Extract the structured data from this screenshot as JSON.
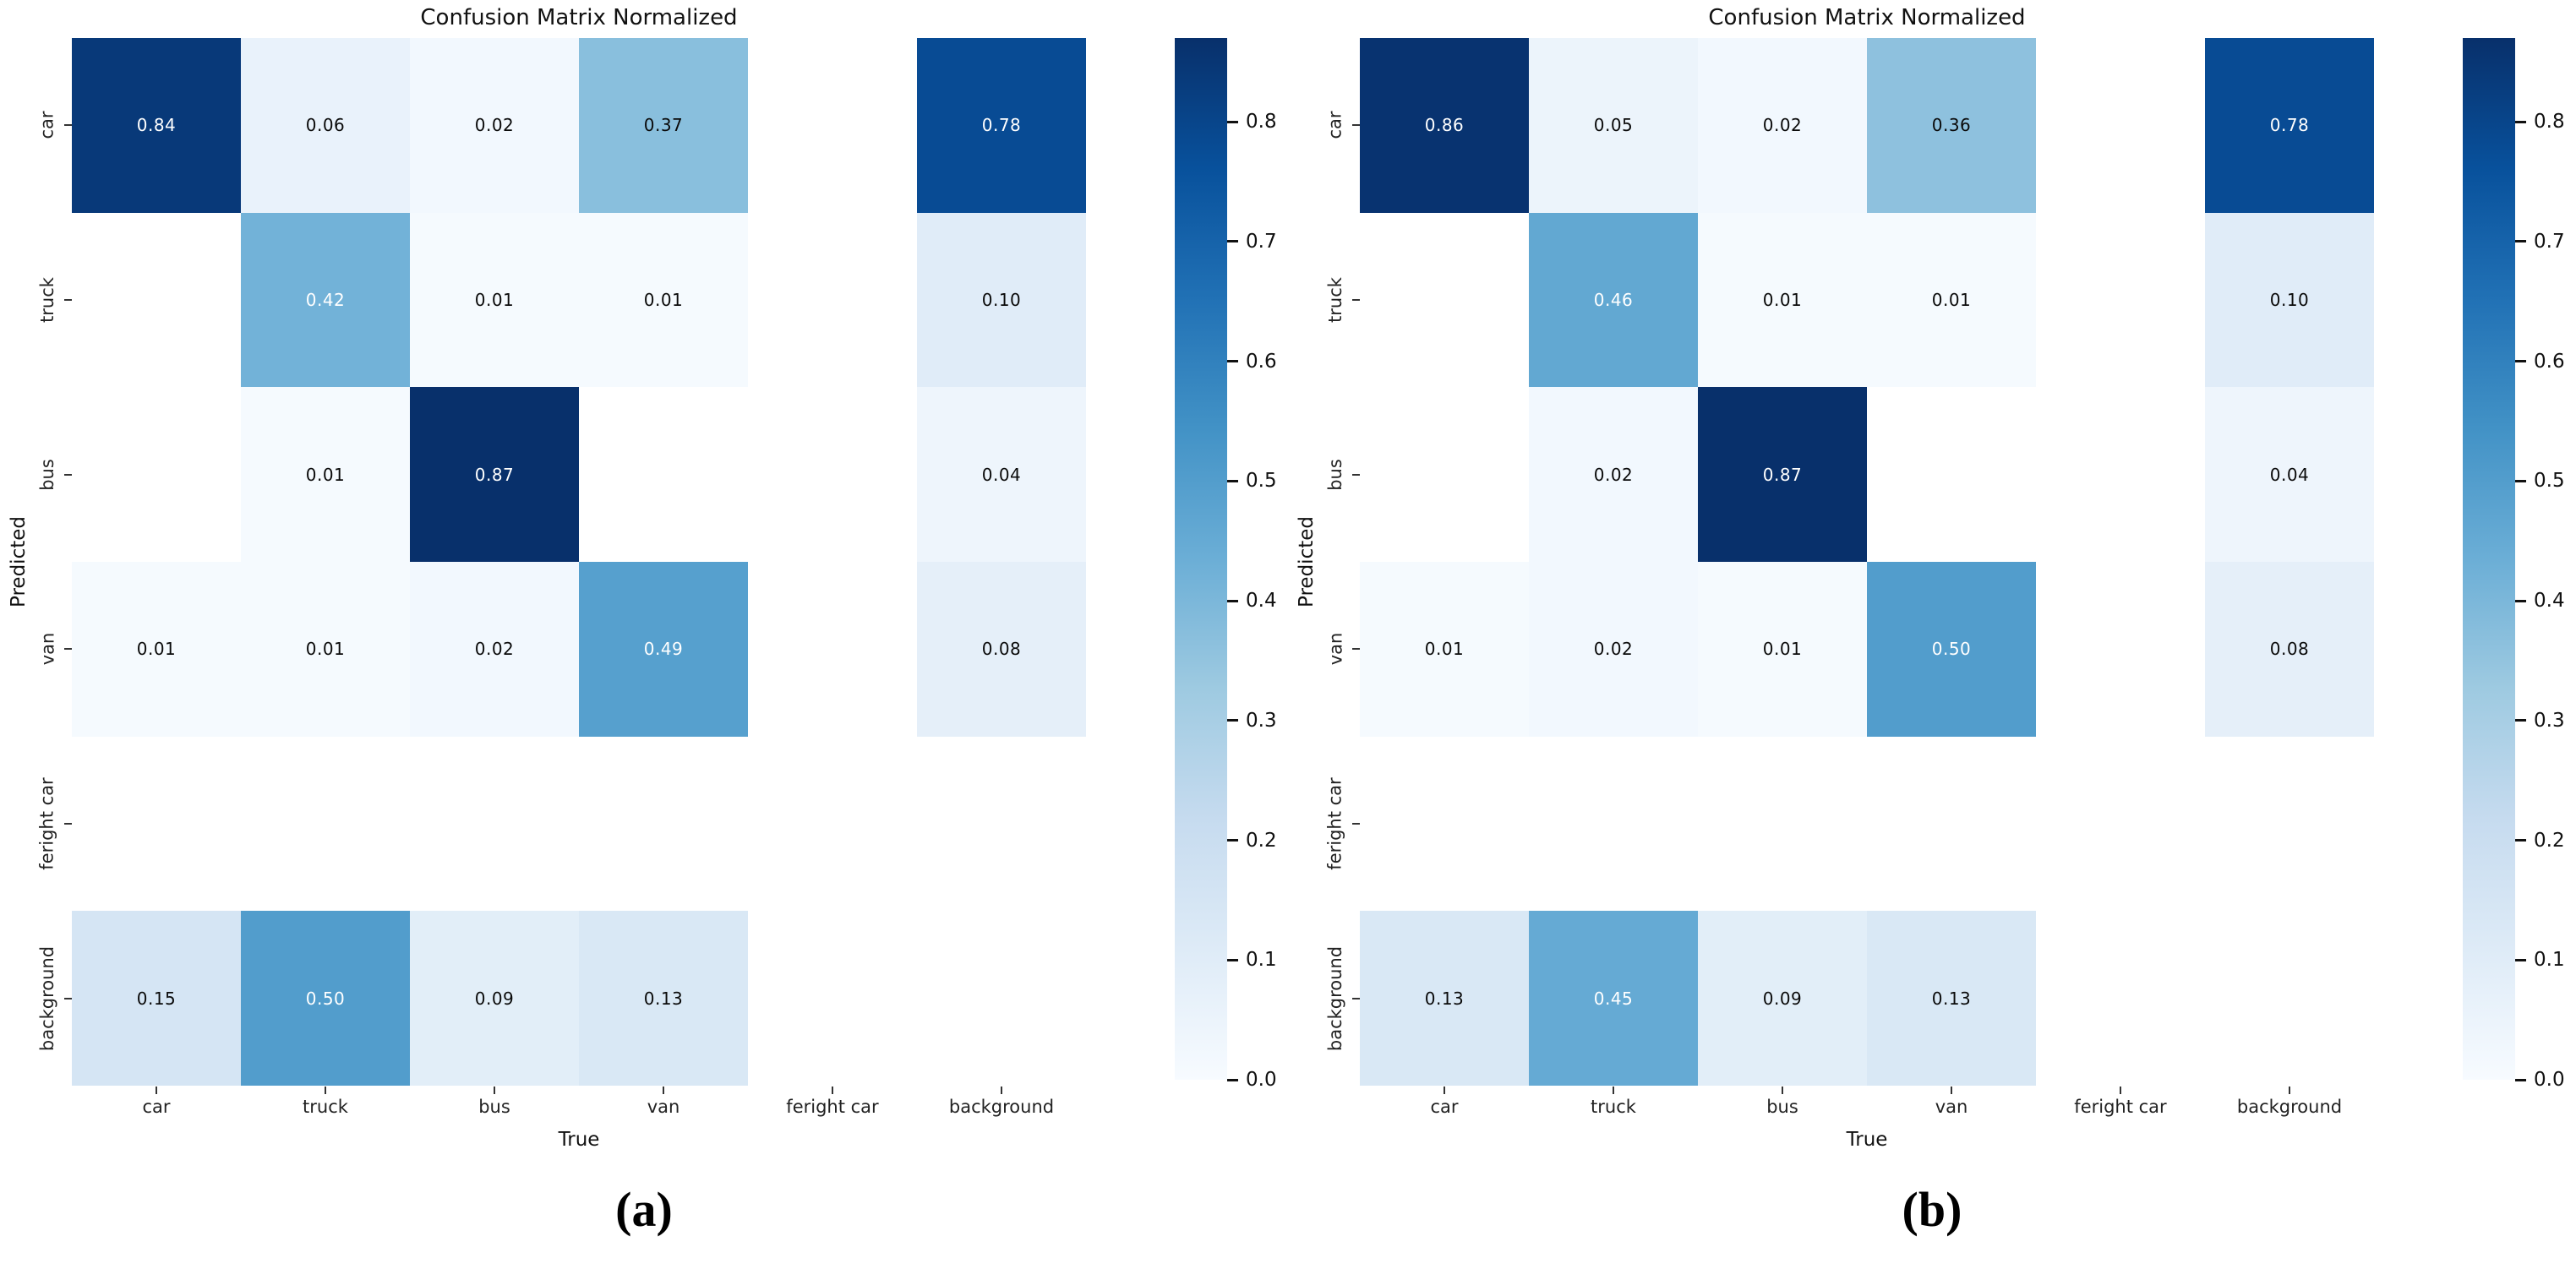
{
  "captions": {
    "a": "(a)",
    "b": "(b)"
  },
  "palette": {
    "background": "#ffffff",
    "empty_cell": "#ffffff",
    "annotation_dark_text": "#0a0a0a",
    "annotation_light_text": "#ffffff",
    "blues_stops": [
      "#f7fbff",
      "#deebf7",
      "#c6dbef",
      "#9ecae1",
      "#6baed6",
      "#4292c6",
      "#2171b5",
      "#08519c",
      "#08306b"
    ]
  },
  "chart_data": [
    {
      "type": "heatmap",
      "panel": "a",
      "title": "Confusion Matrix Normalized",
      "xlabel": "True",
      "ylabel": "Predicted",
      "x_categories": [
        "car",
        "truck",
        "bus",
        "van",
        "feright car",
        "background"
      ],
      "y_categories": [
        "car",
        "truck",
        "bus",
        "van",
        "feright car",
        "background"
      ],
      "values": [
        [
          0.84,
          0.06,
          0.02,
          0.37,
          null,
          0.78
        ],
        [
          null,
          0.42,
          0.01,
          0.01,
          null,
          0.1
        ],
        [
          null,
          0.01,
          0.87,
          null,
          null,
          0.04
        ],
        [
          0.01,
          0.01,
          0.02,
          0.49,
          null,
          0.08
        ],
        [
          null,
          null,
          null,
          null,
          null,
          null
        ],
        [
          0.15,
          0.5,
          0.09,
          0.13,
          null,
          null
        ]
      ],
      "vmin": 0.0,
      "vmax": 0.87,
      "colormap": "Blues",
      "colorbar_ticks": [
        0.0,
        0.1,
        0.2,
        0.3,
        0.4,
        0.5,
        0.6,
        0.7,
        0.8
      ],
      "annotation_decimals": 2,
      "legend_position": "right-colorbar",
      "grid": false
    },
    {
      "type": "heatmap",
      "panel": "b",
      "title": "Confusion Matrix Normalized",
      "xlabel": "True",
      "ylabel": "Predicted",
      "x_categories": [
        "car",
        "truck",
        "bus",
        "van",
        "feright car",
        "background"
      ],
      "y_categories": [
        "car",
        "truck",
        "bus",
        "van",
        "feright car",
        "background"
      ],
      "values": [
        [
          0.86,
          0.05,
          0.02,
          0.36,
          null,
          0.78
        ],
        [
          null,
          0.46,
          0.01,
          0.01,
          null,
          0.1
        ],
        [
          null,
          0.02,
          0.87,
          null,
          null,
          0.04
        ],
        [
          0.01,
          0.02,
          0.01,
          0.5,
          null,
          0.08
        ],
        [
          null,
          null,
          null,
          null,
          null,
          null
        ],
        [
          0.13,
          0.45,
          0.09,
          0.13,
          null,
          null
        ]
      ],
      "vmin": 0.0,
      "vmax": 0.87,
      "colormap": "Blues",
      "colorbar_ticks": [
        0.0,
        0.1,
        0.2,
        0.3,
        0.4,
        0.5,
        0.6,
        0.7,
        0.8
      ],
      "annotation_decimals": 2,
      "legend_position": "right-colorbar",
      "grid": false
    }
  ]
}
